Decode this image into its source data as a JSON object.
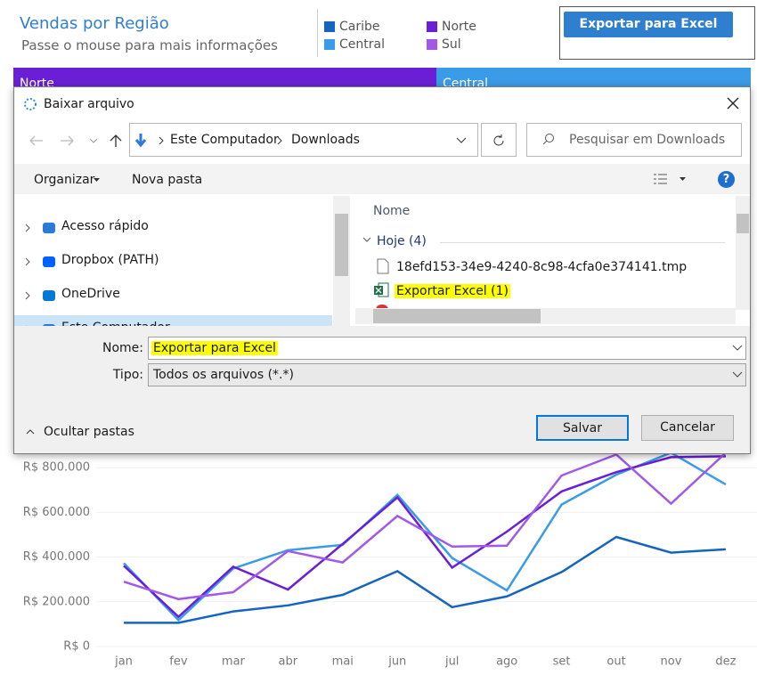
{
  "header": {
    "title": "Vendas por Região",
    "subtitle": "Passe o mouse para mais informações"
  },
  "export_button": "Exportar para Excel",
  "region_headers": [
    {
      "name": "Norte",
      "color": "#6a1fd6"
    },
    {
      "name": "Central",
      "color": "#3a9be8"
    }
  ],
  "chart": {
    "type": "line",
    "x": [
      "jan",
      "fev",
      "mar",
      "abr",
      "mai",
      "jun",
      "jul",
      "ago",
      "set",
      "out",
      "nov",
      "dez"
    ],
    "series": [
      {
        "name": "Caribe",
        "color": "#1565c0",
        "values": [
          106000,
          106000,
          157000,
          184000,
          231000,
          337000,
          176000,
          224000,
          333000,
          490000,
          420000,
          435000
        ]
      },
      {
        "name": "Central",
        "color": "#3a9be8",
        "values": [
          373000,
          118000,
          349000,
          431000,
          455000,
          678000,
          396000,
          251000,
          635000,
          769000,
          867000,
          725000
        ]
      },
      {
        "name": "Norte",
        "color": "#6a1fd6",
        "values": [
          361000,
          133000,
          357000,
          255000,
          459000,
          667000,
          353000,
          514000,
          694000,
          780000,
          847000,
          851000
        ]
      },
      {
        "name": "Sul",
        "color": "#a259e8",
        "values": [
          290000,
          212000,
          243000,
          427000,
          376000,
          584000,
          447000,
          451000,
          765000,
          859000,
          639000,
          867000
        ]
      }
    ],
    "ylim": [
      0,
      1000000
    ],
    "yticks": [
      {
        "value": 0,
        "label": "R$ 0"
      },
      {
        "value": 200000,
        "label": "R$ 200.000"
      },
      {
        "value": 400000,
        "label": "R$ 400.000"
      },
      {
        "value": 600000,
        "label": "R$ 600.000"
      },
      {
        "value": 800000,
        "label": "R$ 800.000"
      }
    ]
  },
  "dialog": {
    "title": "Baixar arquivo",
    "path": [
      "Este Computador",
      "Downloads"
    ],
    "search_placeholder": "Pesquisar em Downloads",
    "toolbar": [
      "Organizar",
      "Nova pasta"
    ],
    "help": "?",
    "nav": [
      "Acesso rápido",
      "Dropbox (PATH)",
      "OneDrive",
      "Este Computador"
    ],
    "column": "Nome",
    "group": "Hoje (4)",
    "files": [
      "18efd153-34e9-4240-8c98-4cfa0e374141.tmp",
      "Exportar Excel (1)"
    ],
    "fields": [
      {
        "label": "Nome:",
        "value": "Exportar para Excel"
      },
      {
        "label": "Tipo:",
        "value": "Todos os arquivos (*.*)"
      }
    ],
    "hide_folders": "Ocultar pastas",
    "buttons": [
      "Salvar",
      "Cancelar"
    ]
  }
}
